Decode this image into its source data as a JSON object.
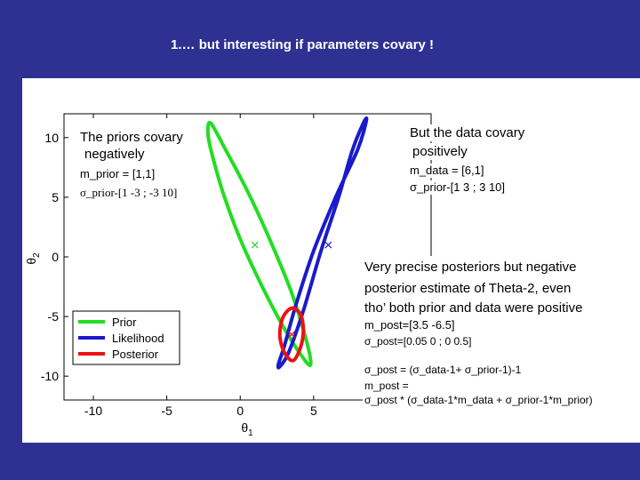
{
  "slide": {
    "title": "1.… but interesting if parameters covary !"
  },
  "annotations": {
    "priors_heading_1": "The priors covary",
    "priors_heading_2": "negatively",
    "m_prior": "m_prior = [1,1]",
    "sigma_prior": "σ_prior-[1 -3 ; -3 10]",
    "data_heading_1": "But the data covary",
    "data_heading_2": "positively",
    "m_data": "m_data = [6,1]",
    "sigma_data": "σ_prior-[1 3 ; 3 10]",
    "post_1": "Very precise posteriors but negative",
    "post_2": "posterior estimate of Theta-2, even",
    "post_3": "tho’ both prior and data were positive",
    "m_post": "m_post=[3.5   -6.5]",
    "sigma_post": "σ_post=[0.05 0 ; 0 0.5]",
    "formula_1": "σ_post = (σ_data-1+ σ_prior-1)-1",
    "formula_2": "m_post =",
    "formula_3": "σ_post * (σ_data-1*m_data +  σ_prior-1*m_prior)"
  },
  "chart_data": {
    "type": "line",
    "xlabel": "θ1",
    "ylabel": "θ2",
    "xlim": [
      -12,
      13
    ],
    "ylim": [
      -12,
      12
    ],
    "x_ticks": [
      -10,
      -5,
      0,
      5
    ],
    "y_ticks": [
      10,
      5,
      0,
      -5,
      -10
    ],
    "series": [
      {
        "name": "Prior",
        "color": "#22dd22",
        "center": [
          1,
          1
        ],
        "x": [
          -2.2,
          -2.0,
          -1.0,
          0.5,
          2.0,
          3.5,
          4.5,
          4.8,
          4.3,
          3.0,
          1.5,
          0.0,
          -1.2,
          -2.0,
          -2.2
        ],
        "y": [
          10.5,
          11.2,
          9.0,
          5.5,
          1.5,
          -3.0,
          -7.0,
          -9.0,
          -8.5,
          -6.0,
          -2.5,
          1.5,
          5.5,
          9.0,
          10.5
        ]
      },
      {
        "name": "Likelihood",
        "color": "#1a1acc",
        "center": [
          6,
          1
        ],
        "x": [
          8.3,
          8.6,
          8.0,
          6.5,
          5.0,
          3.8,
          3.0,
          2.6,
          2.7,
          3.3,
          4.3,
          5.5,
          6.7,
          7.6,
          8.3
        ],
        "y": [
          11.0,
          11.5,
          9.0,
          5.0,
          0.5,
          -4.0,
          -7.5,
          -9.0,
          -9.2,
          -8.0,
          -4.5,
          0.5,
          5.0,
          8.8,
          11.0
        ]
      },
      {
        "name": "Posterior",
        "color": "#ee1111",
        "center": [
          3.5,
          -6.5
        ],
        "x": [
          3.5,
          4.1,
          4.3,
          4.1,
          3.6,
          3.0,
          2.7,
          2.9,
          3.5
        ],
        "y": [
          -4.3,
          -4.8,
          -6.2,
          -7.6,
          -8.7,
          -8.0,
          -6.6,
          -5.1,
          -4.3
        ]
      }
    ],
    "markers": [
      {
        "x": 1,
        "y": 1,
        "color": "#22dd22"
      },
      {
        "x": 6,
        "y": 1,
        "color": "#1a1acc"
      },
      {
        "x": 3.5,
        "y": -6.5,
        "color": "#ee1111"
      }
    ],
    "legend": "bottom-left"
  }
}
